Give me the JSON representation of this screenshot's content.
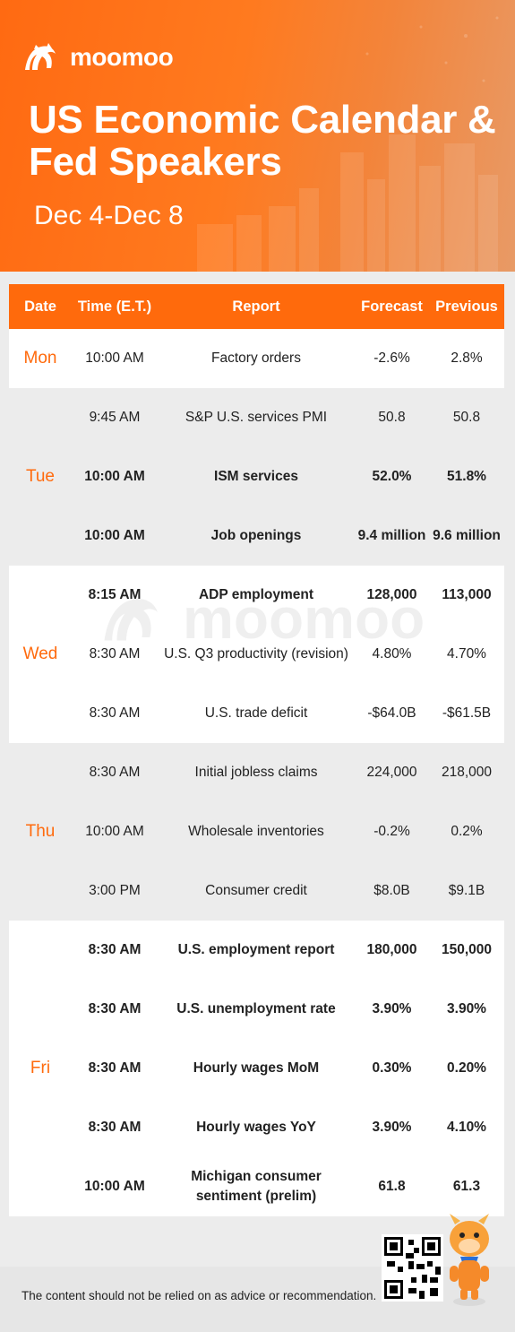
{
  "brand": {
    "name": "moomoo",
    "watermark": "moomoo"
  },
  "header": {
    "title_line1": "US Economic Calendar &",
    "title_line2": "Fed Speakers",
    "date_range": "Dec 4-Dec 8"
  },
  "table": {
    "headers": {
      "date": "Date",
      "time": "Time (E.T.)",
      "report": "Report",
      "forecast": "Forecast",
      "previous": "Previous"
    },
    "days": [
      {
        "day": "Mon",
        "shade": "white",
        "rows": [
          {
            "time": "10:00 AM",
            "report": "Factory orders",
            "forecast": "-2.6%",
            "previous": "2.8%",
            "bold": false
          }
        ]
      },
      {
        "day": "Tue",
        "shade": "gray",
        "rows": [
          {
            "time": "9:45 AM",
            "report": "S&P U.S. services PMI",
            "forecast": "50.8",
            "previous": "50.8",
            "bold": false
          },
          {
            "time": "10:00 AM",
            "report": "ISM services",
            "forecast": "52.0%",
            "previous": "51.8%",
            "bold": true
          },
          {
            "time": "10:00 AM",
            "report": "Job openings",
            "forecast": "9.4 million",
            "previous": "9.6 million",
            "bold": true
          }
        ]
      },
      {
        "day": "Wed",
        "shade": "white",
        "rows": [
          {
            "time": "8:15 AM",
            "report": "ADP employment",
            "forecast": "128,000",
            "previous": "113,000",
            "bold": true
          },
          {
            "time": "8:30 AM",
            "report": "U.S. Q3 productivity (revision)",
            "forecast": "4.80%",
            "previous": "4.70%",
            "bold": false
          },
          {
            "time": "8:30 AM",
            "report": "U.S. trade deficit",
            "forecast": "-$64.0B",
            "previous": "-$61.5B",
            "bold": false
          }
        ]
      },
      {
        "day": "Thu",
        "shade": "gray",
        "rows": [
          {
            "time": "8:30 AM",
            "report": "Initial jobless claims",
            "forecast": "224,000",
            "previous": "218,000",
            "bold": false
          },
          {
            "time": "10:00 AM",
            "report": "Wholesale inventories",
            "forecast": "-0.2%",
            "previous": "0.2%",
            "bold": false
          },
          {
            "time": "3:00 PM",
            "report": "Consumer credit",
            "forecast": "$8.0B",
            "previous": "$9.1B",
            "bold": false
          }
        ]
      },
      {
        "day": "Fri",
        "shade": "white",
        "rows": [
          {
            "time": "8:30 AM",
            "report": "U.S. employment report",
            "forecast": "180,000",
            "previous": "150,000",
            "bold": true
          },
          {
            "time": "8:30 AM",
            "report": "U.S. unemployment rate",
            "forecast": "3.90%",
            "previous": "3.90%",
            "bold": true
          },
          {
            "time": "8:30 AM",
            "report": "Hourly wages MoM",
            "forecast": "0.30%",
            "previous": "0.20%",
            "bold": true
          },
          {
            "time": "8:30 AM",
            "report": "Hourly wages YoY",
            "forecast": "3.90%",
            "previous": "4.10%",
            "bold": true
          },
          {
            "time": "10:00 AM",
            "report": "Michigan consumer sentiment (prelim)",
            "forecast": "61.8",
            "previous": "61.3",
            "bold": true
          }
        ]
      }
    ]
  },
  "footer": {
    "disclaimer": "The content should not be relied on as advice or recommendation."
  },
  "icons": {
    "logo": "moomoo-bull-logo-icon",
    "qr": "qr-code-icon",
    "mascot": "bull-mascot-icon"
  },
  "colors": {
    "accent": "#ff6a0c",
    "row_alt": "#ececec"
  }
}
